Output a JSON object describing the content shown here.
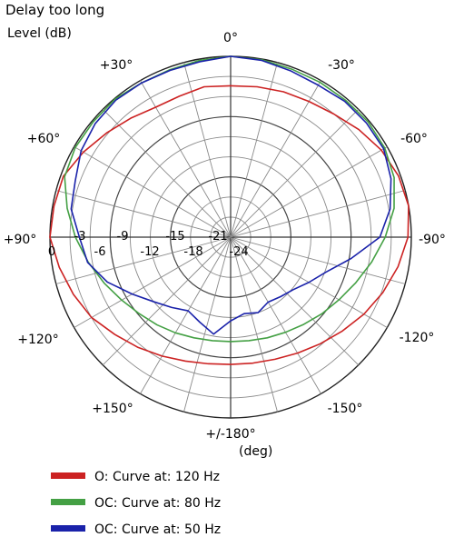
{
  "chart_data": {
    "type": "polar-line",
    "title": "Delay too long",
    "ylabel": "Level (dB)",
    "angle_unit": "(deg)",
    "radial_range": [
      -27,
      0
    ],
    "radial_tick_step": 3,
    "radial_tick_labels": [
      "0",
      "-3",
      "-6",
      "-9",
      "-12",
      "-15",
      "-18",
      "-21",
      "-24"
    ],
    "angle_tick_labels": [
      {
        "angle": 0,
        "label": "0°"
      },
      {
        "angle": -30,
        "label": "-30°"
      },
      {
        "angle": -60,
        "label": "-60°"
      },
      {
        "angle": -90,
        "label": "-90°"
      },
      {
        "angle": -120,
        "label": "-120°"
      },
      {
        "angle": -150,
        "label": "-150°"
      },
      {
        "angle": 180,
        "label": "+/-180°"
      },
      {
        "angle": 150,
        "label": "+150°"
      },
      {
        "angle": 120,
        "label": "+120°"
      },
      {
        "angle": 90,
        "label": "+90°"
      },
      {
        "angle": 60,
        "label": "+60°"
      },
      {
        "angle": 30,
        "label": "+30°"
      }
    ],
    "grid": true,
    "legend_position": "bottom",
    "angles": [
      0,
      10,
      20,
      30,
      40,
      50,
      60,
      70,
      80,
      90,
      100,
      110,
      120,
      130,
      140,
      150,
      160,
      170,
      180,
      190,
      200,
      210,
      220,
      230,
      240,
      250,
      260,
      270,
      280,
      290,
      300,
      310,
      320,
      330,
      340,
      350
    ],
    "series": [
      {
        "name": "O: Curve at: 120 Hz",
        "color": "#cc2222",
        "values": [
          -4.4,
          -4.2,
          -4.6,
          -4.6,
          -3.8,
          -2.8,
          -1.6,
          -0.4,
          -0.2,
          0,
          -1,
          -2,
          -3,
          -4.4,
          -5.5,
          -6.5,
          -7.3,
          -7.8,
          -8,
          -7.9,
          -7.6,
          -7,
          -6.2,
          -5.2,
          -4,
          -2.8,
          -1.6,
          -0.5,
          0,
          -0.3,
          -1,
          -2,
          -3,
          -3.6,
          -3.9,
          -4.2
        ]
      },
      {
        "name": "OC: Curve at: 80 Hz",
        "color": "#44a044",
        "values": [
          0,
          -0.2,
          -0.4,
          -0.4,
          -0.1,
          -0.2,
          -0.2,
          -0.6,
          -2.2,
          -3.8,
          -5.4,
          -6.9,
          -8.2,
          -9.2,
          -9.9,
          -10.5,
          -11,
          -11.3,
          -11.4,
          -11.3,
          -11,
          -10.6,
          -10,
          -9.2,
          -8.3,
          -7.1,
          -5.6,
          -3.9,
          -2.2,
          -1,
          -0.4,
          -0.2,
          -0.3,
          -0.3,
          -0.3,
          -0.1
        ]
      },
      {
        "name": "OC: Curve at: 50 Hz",
        "color": "#1a22aa",
        "values": [
          0,
          -0.4,
          -0.5,
          -0.4,
          -0.3,
          -0.6,
          -1.2,
          -2.3,
          -2.8,
          -4.4,
          -5.3,
          -7.4,
          -10,
          -12,
          -13.3,
          -14.3,
          -13.5,
          -12.3,
          -14.5,
          -15.4,
          -15,
          -15.8,
          -15.4,
          -14.8,
          -13.5,
          -11.8,
          -8.7,
          -4.7,
          -2.8,
          -1.5,
          -0.6,
          -0.5,
          -0.5,
          -0.8,
          -0.6,
          -0.2
        ]
      }
    ]
  }
}
